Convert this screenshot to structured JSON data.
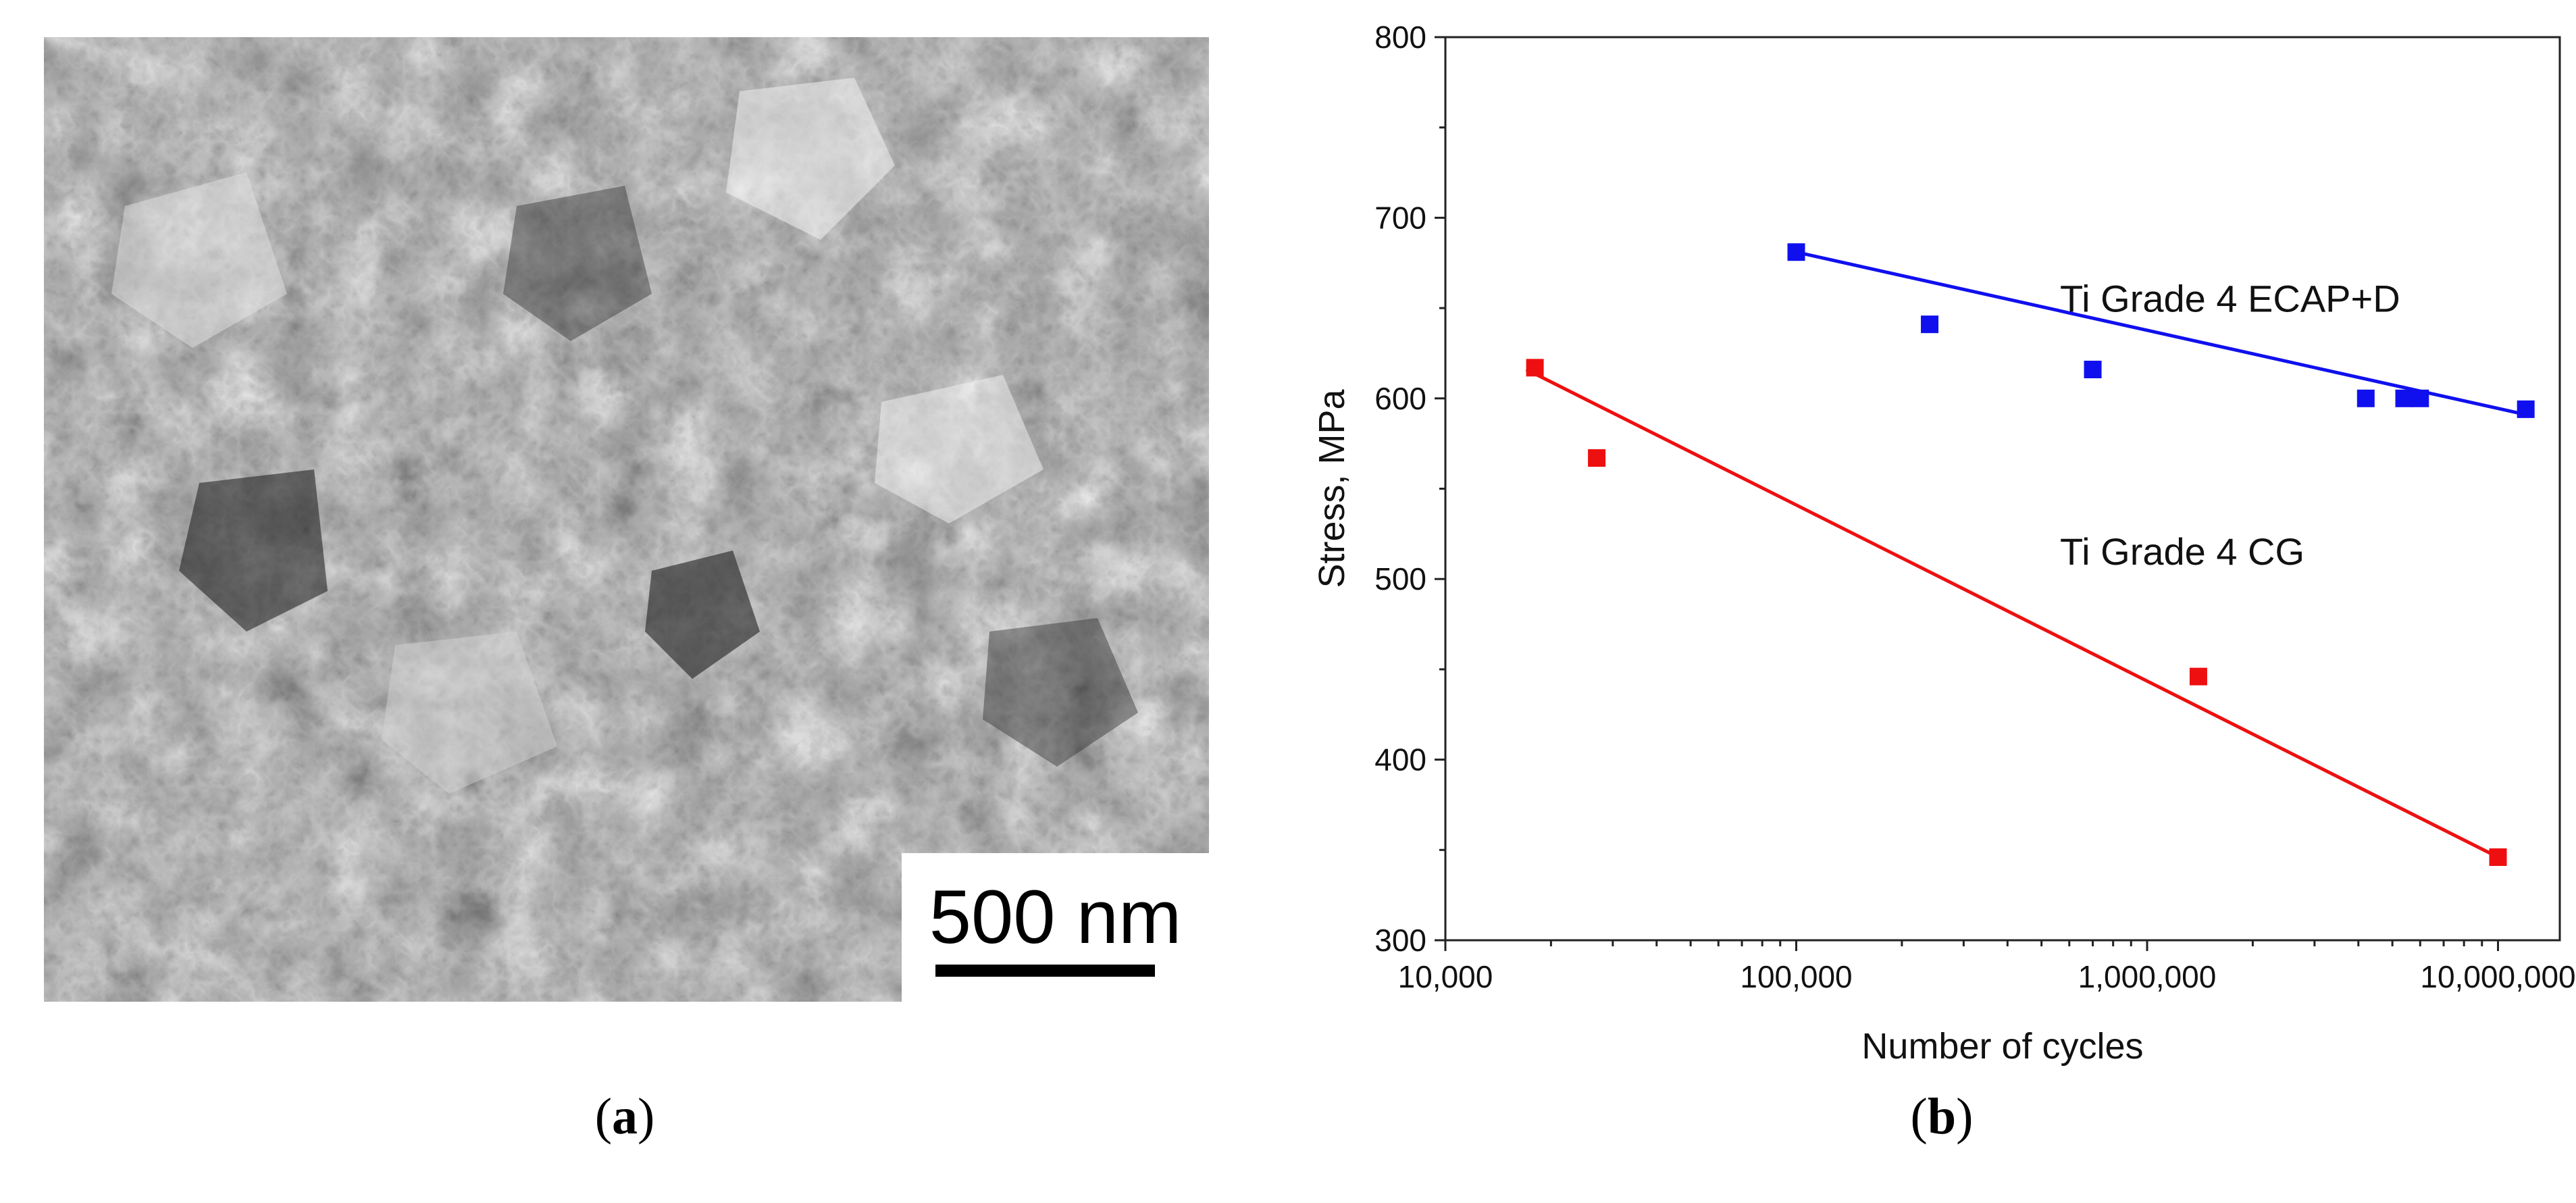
{
  "panel_a": {
    "scale_label": "500 nm",
    "caption": "a"
  },
  "panel_b": {
    "caption": "b"
  },
  "colors": {
    "ecap": "#1010ee",
    "cg": "#ee1010",
    "axis": "#222222"
  },
  "chart_data": {
    "type": "scatter",
    "xlabel": "Number of cycles",
    "ylabel": "Stress, MPa",
    "xscale": "log",
    "xlim": [
      10000,
      15000000
    ],
    "ylim": [
      300,
      800
    ],
    "xticks": [
      10000,
      100000,
      1000000,
      10000000
    ],
    "xtick_labels": [
      "10,000",
      "100,000",
      "1,000,000",
      "10,000,000"
    ],
    "yticks": [
      300,
      400,
      500,
      600,
      700,
      800
    ],
    "ytick_labels": [
      "300",
      "400",
      "500",
      "600",
      "700",
      "800"
    ],
    "grid": false,
    "series": [
      {
        "name": "Ti Grade 4 ECAP+D",
        "color": "#1010ee",
        "points": [
          {
            "x": 100000,
            "y": 681
          },
          {
            "x": 240000,
            "y": 641
          },
          {
            "x": 700000,
            "y": 616
          },
          {
            "x": 4200000,
            "y": 600
          },
          {
            "x": 5400000,
            "y": 600
          },
          {
            "x": 6000000,
            "y": 600
          },
          {
            "x": 12000000,
            "y": 594
          }
        ],
        "trend": [
          {
            "x": 100000,
            "y": 681
          },
          {
            "x": 12000000,
            "y": 591
          }
        ]
      },
      {
        "name": "Ti Grade 4 CG",
        "color": "#ee1010",
        "points": [
          {
            "x": 18000,
            "y": 617
          },
          {
            "x": 27000,
            "y": 567
          },
          {
            "x": 1400000,
            "y": 446
          },
          {
            "x": 10000000,
            "y": 346
          }
        ],
        "trend": [
          {
            "x": 17000,
            "y": 616
          },
          {
            "x": 10000000,
            "y": 346
          }
        ]
      }
    ]
  }
}
